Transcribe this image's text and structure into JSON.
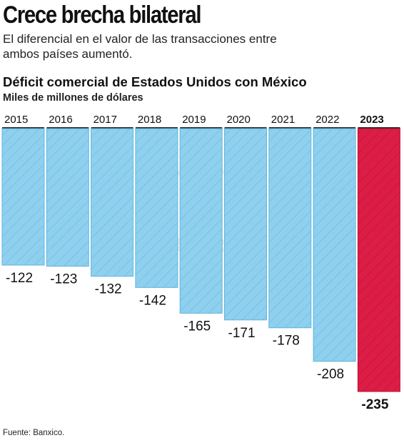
{
  "headline": "Crece brecha bilateral",
  "deck": "El diferencial en el valor de las transacciones entre ambos países aumentó.",
  "source": "Fuente: Banxico.",
  "colors": {
    "normal_fill": "#8fd0ef",
    "normal_stroke": "#5fb4dc",
    "highlight_fill": "#dc1d45",
    "highlight_stroke": "#b8143a"
  },
  "chart_data": {
    "type": "bar",
    "title": "Déficit comercial de Estados Unidos con México",
    "subtitle": "Miles de millones de dólares",
    "categories": [
      "2015",
      "2016",
      "2017",
      "2018",
      "2019",
      "2020",
      "2021",
      "2022",
      "2023"
    ],
    "values": [
      -122,
      -123,
      -132,
      -142,
      -165,
      -171,
      -178,
      -208,
      -235
    ],
    "highlight": "2023",
    "ylim": [
      -235,
      0
    ],
    "grid": false,
    "legend": "none"
  }
}
